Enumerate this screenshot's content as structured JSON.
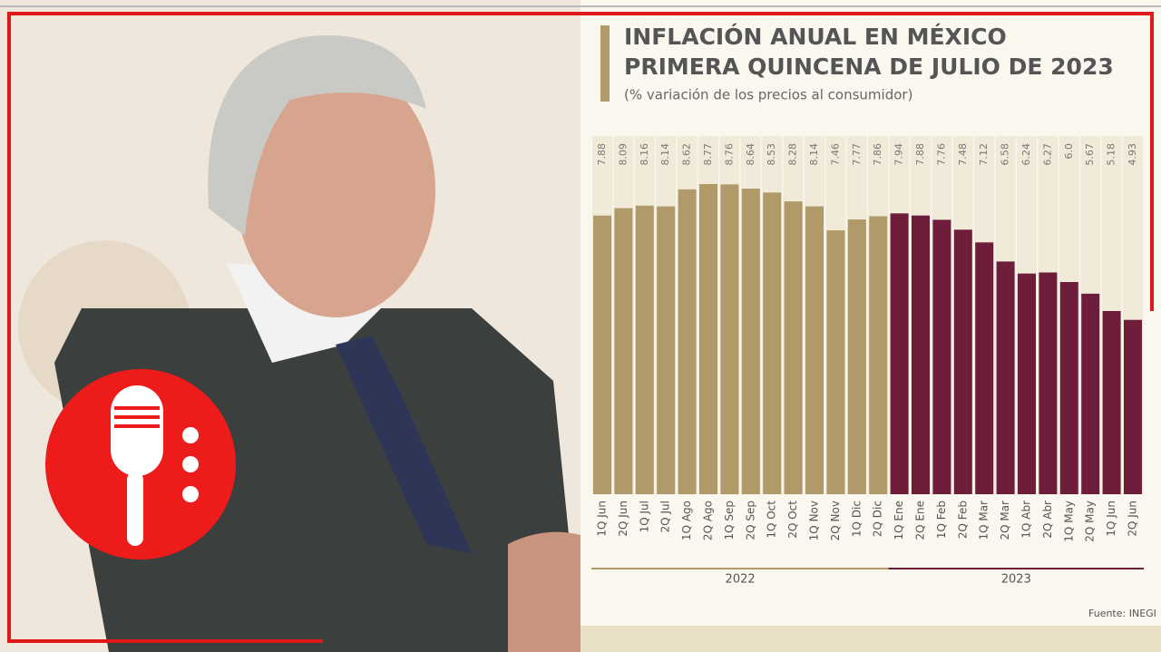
{
  "chart_data": {
    "type": "bar",
    "title": "INFLACIÓN ANUAL EN MÉXICO",
    "title_line2": "PRIMERA QUINCENA DE JULIO DE 2023",
    "subtitle": "(% variación de los precios al consumidor)",
    "source": "Fuente: INEGI",
    "categories": [
      "1Q Jun",
      "2Q Jun",
      "1Q Jul",
      "2Q Jul",
      "1Q Ago",
      "2Q Ago",
      "1Q Sep",
      "2Q Sep",
      "1Q Oct",
      "2Q Oct",
      "1Q Nov",
      "2Q Nov",
      "1Q Dic",
      "2Q Dic",
      "1Q Ene",
      "2Q Ene",
      "1Q Feb",
      "2Q Feb",
      "1Q Mar",
      "2Q Mar",
      "1Q Abr",
      "2Q Abr",
      "1Q May",
      "2Q May",
      "1Q Jun",
      "2Q Jun"
    ],
    "series": [
      {
        "name": "2022",
        "color": "#b09a6a",
        "values": [
          7.88,
          8.09,
          8.16,
          8.14,
          8.62,
          8.77,
          8.76,
          8.64,
          8.53,
          8.28,
          8.14,
          7.46,
          7.77,
          7.86,
          null,
          null,
          null,
          null,
          null,
          null,
          null,
          null,
          null,
          null,
          null,
          null
        ],
        "value_labels": [
          "7.88",
          "8.09",
          "8.16",
          "8.14",
          "8.62",
          "8.77",
          "8.76",
          "8.64",
          "8.53",
          "8.28",
          "8.14",
          "7.46",
          "7.77",
          "7.86",
          null,
          null,
          null,
          null,
          null,
          null,
          null,
          null,
          null,
          null,
          null,
          null
        ]
      },
      {
        "name": "2023",
        "color": "#6e1d3b",
        "values": [
          null,
          null,
          null,
          null,
          null,
          null,
          null,
          null,
          null,
          null,
          null,
          null,
          null,
          null,
          7.94,
          7.88,
          7.76,
          7.48,
          7.12,
          6.58,
          6.24,
          6.27,
          6.0,
          5.67,
          5.18,
          4.93
        ],
        "value_labels": [
          null,
          null,
          null,
          null,
          null,
          null,
          null,
          null,
          null,
          null,
          null,
          null,
          null,
          null,
          "7.94",
          "7.88",
          "7.76",
          "7.48",
          "7.12",
          "6.58",
          "6.24",
          "6.27",
          "6.0",
          "5.67",
          "5.18",
          "4.93"
        ]
      }
    ],
    "ylim": [
      0,
      9
    ]
  }
}
